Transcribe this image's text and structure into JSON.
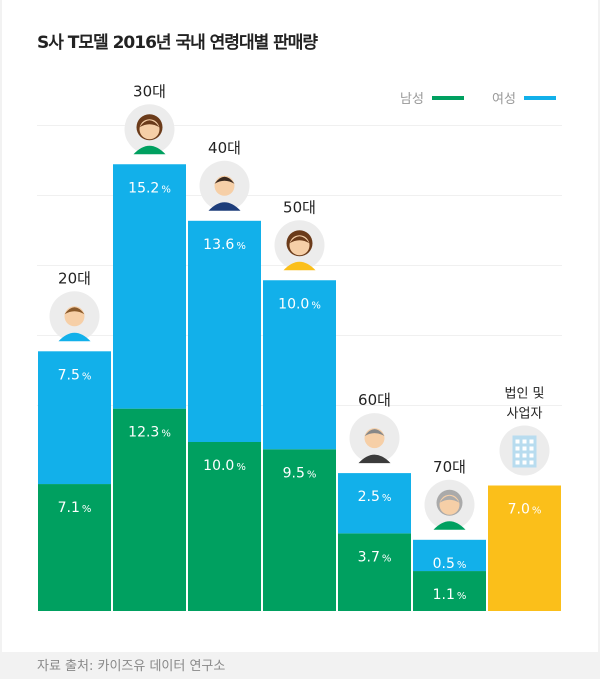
{
  "chart_data": {
    "type": "bar",
    "stacked": true,
    "title": "S사 T모델 2016년 국내 연령대별 판매량",
    "categories": [
      "20대",
      "30대",
      "40대",
      "50대",
      "60대",
      "70대",
      "법인 및 사업자"
    ],
    "series": [
      {
        "name": "남성",
        "color": "#00a060",
        "values": [
          7.1,
          12.3,
          10.0,
          9.5,
          3.7,
          1.1,
          null
        ]
      },
      {
        "name": "여성",
        "color": "#12b0ea",
        "values": [
          7.5,
          15.2,
          13.6,
          10.0,
          2.5,
          0.5,
          null
        ]
      },
      {
        "name": "",
        "color": "#fbbf1a",
        "values": [
          null,
          null,
          null,
          null,
          null,
          null,
          7.0
        ]
      }
    ],
    "value_suffix": "%",
    "icons": [
      "avatar-young-man-icon",
      "avatar-young-woman-icon",
      "avatar-man-suit-icon",
      "avatar-woman-icon",
      "avatar-old-man-icon",
      "avatar-old-woman-icon",
      "building-icon"
    ],
    "legend_position": "top-right"
  },
  "footer": {
    "source": "자료 출처: 카이즈유 데이터 연구소"
  }
}
